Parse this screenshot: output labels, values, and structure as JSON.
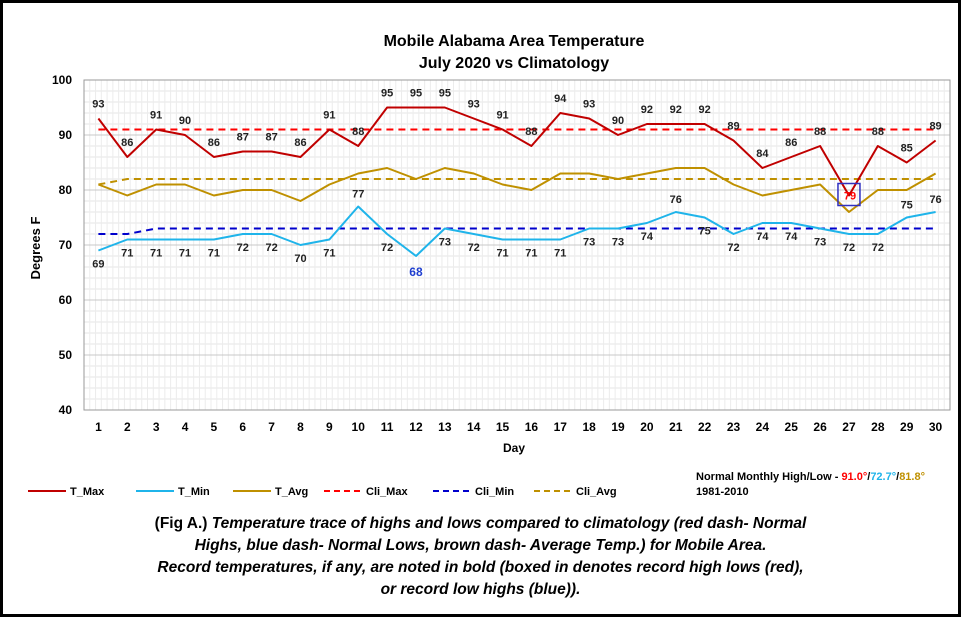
{
  "chart_data": {
    "type": "line",
    "title": "Mobile Alabama Area Temperature",
    "subtitle": "July 2020 vs Climatology",
    "xlabel": "Day",
    "ylabel": "Degrees F",
    "ylim": [
      40,
      100
    ],
    "yticks": [
      40,
      50,
      60,
      70,
      80,
      90,
      100
    ],
    "grid": true,
    "x": [
      1,
      2,
      3,
      4,
      5,
      6,
      7,
      8,
      9,
      10,
      11,
      12,
      13,
      14,
      15,
      16,
      17,
      18,
      19,
      20,
      21,
      22,
      23,
      24,
      25,
      26,
      27,
      28,
      29,
      30
    ],
    "series": [
      {
        "name": "T_Max",
        "color": "#c00000",
        "dashed": false,
        "values": [
          93,
          86,
          91,
          90,
          86,
          87,
          87,
          86,
          91,
          88,
          95,
          95,
          95,
          93,
          91,
          88,
          94,
          93,
          90,
          92,
          92,
          92,
          89,
          84,
          86,
          88,
          79,
          88,
          85,
          89
        ]
      },
      {
        "name": "T_Min",
        "color": "#1fb4ea",
        "dashed": false,
        "values": [
          69,
          71,
          71,
          71,
          71,
          72,
          72,
          70,
          71,
          77,
          72,
          68,
          73,
          72,
          71,
          71,
          71,
          73,
          73,
          74,
          76,
          75,
          72,
          74,
          74,
          73,
          72,
          72,
          75,
          76
        ]
      },
      {
        "name": "T_Avg",
        "color": "#bf9000",
        "dashed": false,
        "values": [
          81,
          79,
          81,
          81,
          79,
          80,
          80,
          78,
          81,
          83,
          84,
          82,
          84,
          83,
          81,
          80,
          83,
          83,
          82,
          83,
          84,
          84,
          81,
          79,
          80,
          81,
          76,
          80,
          80,
          83
        ]
      },
      {
        "name": "Cli_Max",
        "color": "#ff0000",
        "dashed": true,
        "values": [
          91,
          91,
          91,
          91,
          91,
          91,
          91,
          91,
          91,
          91,
          91,
          91,
          91,
          91,
          91,
          91,
          91,
          91,
          91,
          91,
          91,
          91,
          91,
          91,
          91,
          91,
          91,
          91,
          91,
          91
        ]
      },
      {
        "name": "Cli_Min",
        "color": "#0000cc",
        "dashed": true,
        "values": [
          72,
          72,
          73,
          73,
          73,
          73,
          73,
          73,
          73,
          73,
          73,
          73,
          73,
          73,
          73,
          73,
          73,
          73,
          73,
          73,
          73,
          73,
          73,
          73,
          73,
          73,
          73,
          73,
          73,
          73
        ]
      },
      {
        "name": "Cli_Avg",
        "color": "#bf9000",
        "dashed": true,
        "values": [
          81,
          82,
          82,
          82,
          82,
          82,
          82,
          82,
          82,
          82,
          82,
          82,
          82,
          82,
          82,
          82,
          82,
          82,
          82,
          82,
          82,
          82,
          82,
          82,
          82,
          82,
          82,
          82,
          82,
          82
        ]
      }
    ],
    "max_labels": [
      "93",
      "86",
      "91",
      "90",
      "86",
      "87",
      "87",
      "86",
      "91",
      "88",
      "95",
      "95",
      "95",
      "93",
      "91",
      "88",
      "94",
      "93",
      "90",
      "92",
      "92",
      "92",
      "89",
      "84",
      "86",
      "88",
      "79",
      "88",
      "85",
      "89"
    ],
    "min_labels": [
      "69",
      "71",
      "71",
      "71",
      "71",
      "72",
      "72",
      "70",
      "71",
      "77",
      "72",
      "68",
      "73",
      "72",
      "71",
      "71",
      "71",
      "73",
      "73",
      "74",
      "76",
      "75",
      "72",
      "74",
      "74",
      "73",
      "72",
      "72",
      "75",
      "76"
    ],
    "record_low_high_day": 12,
    "record_high_low_box_day": 27,
    "legend_placement": "bottom",
    "normals_note": {
      "label": "Normal Monthly High/Low - ",
      "high": "91.0°",
      "low": "72.7°",
      "avg": "81.8°",
      "sep": "/",
      "period": "1981-2010"
    }
  },
  "caption": {
    "prefix": "(Fig A.)",
    "line1_rest": " Temperature trace of highs and lows compared to climatology (red dash- Normal",
    "line2": "Highs, blue dash- Normal Lows, brown dash- Average Temp.) for Mobile Area.",
    "line3": "Record temperatures, if any, are noted in bold (boxed in denotes record high lows (red),",
    "line4": "or record low highs (blue))."
  }
}
